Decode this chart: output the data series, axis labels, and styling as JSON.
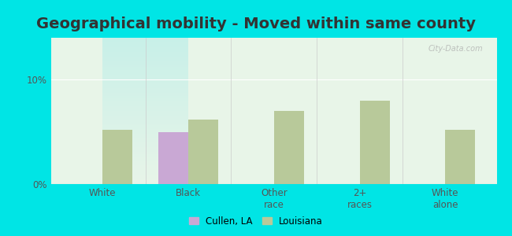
{
  "title": "Geographical mobility - Moved within same county",
  "categories": [
    "White",
    "Black",
    "Other\nrace",
    "2+\nraces",
    "White\nalone"
  ],
  "cullen_values": [
    0,
    5.0,
    0,
    0,
    0
  ],
  "louisiana_values": [
    5.2,
    6.2,
    7.0,
    8.0,
    5.2
  ],
  "cullen_color": "#c9a8d4",
  "louisiana_color": "#b8c99a",
  "background_outer": "#00e5e5",
  "background_inner_top": "#e8f5e8",
  "background_inner_bottom": "#c8f0e8",
  "ylim": [
    0,
    14
  ],
  "yticks": [
    0,
    10
  ],
  "ytick_labels": [
    "0%",
    "10%"
  ],
  "bar_width": 0.35,
  "title_fontsize": 14,
  "legend_cullen": "Cullen, LA",
  "legend_louisiana": "Louisiana",
  "watermark": "City-Data.com"
}
